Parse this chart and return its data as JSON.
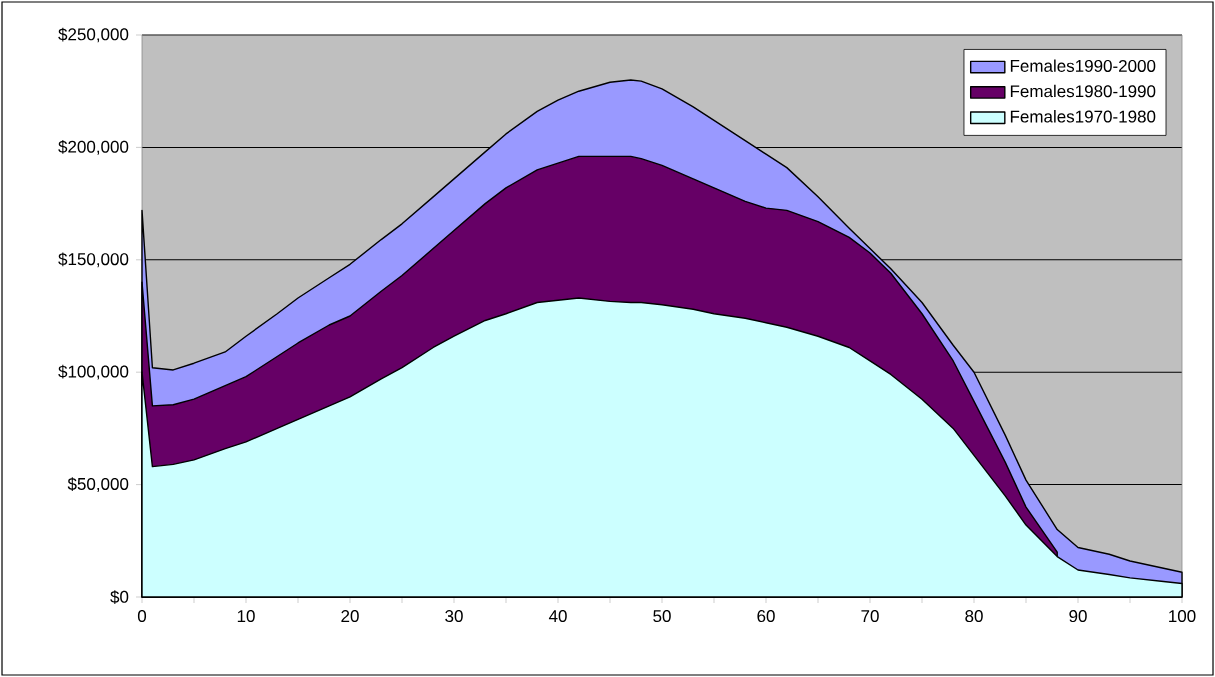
{
  "chart_data": {
    "type": "area",
    "x": [
      0,
      1,
      3,
      5,
      8,
      10,
      13,
      15,
      18,
      20,
      23,
      25,
      28,
      30,
      33,
      35,
      38,
      40,
      42,
      45,
      47,
      48,
      50,
      53,
      55,
      58,
      60,
      62,
      65,
      68,
      70,
      72,
      75,
      78,
      80,
      83,
      85,
      88,
      90,
      93,
      95,
      98,
      100
    ],
    "series": [
      {
        "name": "Females1990-2000",
        "color": "#9999ff",
        "values": [
          172000,
          102000,
          101000,
          104000,
          109000,
          116000,
          126000,
          133000,
          142000,
          148000,
          159000,
          166000,
          178000,
          186000,
          198000,
          206000,
          216000,
          221000,
          225000,
          229000,
          230000,
          229500,
          226000,
          218000,
          212000,
          203000,
          197000,
          191000,
          178000,
          164000,
          155000,
          146000,
          131000,
          112000,
          100000,
          72000,
          52000,
          30000,
          22000,
          19000,
          16000,
          13000,
          11000
        ]
      },
      {
        "name": "Females1980-1990",
        "color": "#660066",
        "values": [
          140000,
          85000,
          85500,
          88000,
          94000,
          98000,
          107000,
          113000,
          121000,
          125000,
          136000,
          143000,
          155000,
          163000,
          175000,
          182000,
          190000,
          193000,
          196000,
          196000,
          196000,
          195000,
          192000,
          186000,
          182000,
          176000,
          173000,
          172000,
          167000,
          160000,
          153000,
          144000,
          126000,
          105000,
          87000,
          60000,
          40000,
          20000,
          null,
          null,
          null,
          null,
          null
        ]
      },
      {
        "name": "Females1970-1980",
        "color": "#ccffff",
        "values": [
          100000,
          58000,
          59000,
          61000,
          66000,
          69000,
          75000,
          79000,
          85000,
          89000,
          97000,
          102000,
          111000,
          116000,
          123000,
          126000,
          131000,
          132000,
          133000,
          131500,
          131000,
          131000,
          130000,
          128000,
          126000,
          124000,
          122000,
          120000,
          116000,
          111000,
          105000,
          99000,
          88000,
          75000,
          63000,
          45000,
          32000,
          18000,
          12000,
          10000,
          8500,
          7000,
          6000
        ]
      }
    ],
    "xlim": [
      0,
      100
    ],
    "xticks": [
      0,
      {
        "value": 5,
        "label": null
      },
      10,
      {
        "value": 15,
        "label": null
      },
      20,
      {
        "value": 25,
        "label": null
      },
      30,
      {
        "value": 35,
        "label": null
      },
      40,
      {
        "value": 45,
        "label": null
      },
      50,
      {
        "value": 55,
        "label": null
      },
      60,
      {
        "value": 65,
        "label": null
      },
      70,
      {
        "value": 75,
        "label": null
      },
      80,
      {
        "value": 85,
        "label": null
      },
      90,
      {
        "value": 95,
        "label": null
      },
      100
    ],
    "ylim": [
      0,
      250000
    ],
    "yticks": [
      {
        "value": 0,
        "label": "$0"
      },
      {
        "value": 50000,
        "label": "$50,000"
      },
      {
        "value": 100000,
        "label": "$100,000"
      },
      {
        "value": 150000,
        "label": "$150,000"
      },
      {
        "value": 200000,
        "label": "$200,000"
      },
      {
        "value": 250000,
        "label": "$250,000"
      }
    ],
    "grid": "y",
    "legend": "top right"
  }
}
